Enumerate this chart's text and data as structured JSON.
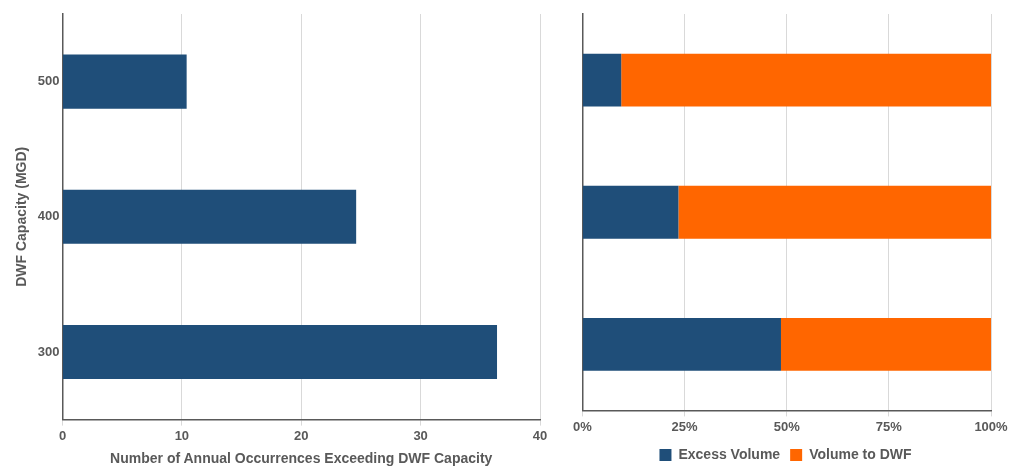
{
  "chart_data": [
    {
      "type": "bar",
      "orientation": "horizontal",
      "ylabel": "DWF Capacity (MGD)",
      "xlabel": "Number of Annual Occurrences Exceeding DWF Capacity",
      "categories": [
        "500",
        "400",
        "300"
      ],
      "series": [
        {
          "color": "#1f4e79",
          "values": [
            10.4,
            24.6,
            36.4
          ]
        }
      ],
      "xlim": [
        0,
        40
      ],
      "xticks": [
        0,
        10,
        20,
        30,
        40
      ],
      "grid": "x",
      "legend": false
    },
    {
      "type": "bar",
      "orientation": "horizontal",
      "stacked": true,
      "categories": [
        "500",
        "400",
        "300"
      ],
      "tick_labels": "x",
      "series": [
        {
          "name": "Excess Volume",
          "color": "#1f4e79",
          "values": [
            9.5,
            23.5,
            48.6
          ]
        },
        {
          "name": "Volume to DWF",
          "color": "#ff6600",
          "values": [
            90.5,
            76.5,
            51.4
          ]
        }
      ],
      "xlim": [
        0,
        100
      ],
      "xticks": [
        {
          "value": 0,
          "label": "0%"
        },
        {
          "value": 25,
          "label": "25%"
        },
        {
          "value": 50,
          "label": "50%"
        },
        {
          "value": 75,
          "label": "75%"
        },
        {
          "value": 100,
          "label": "100%"
        }
      ],
      "grid": "x",
      "legend": "bottom"
    }
  ]
}
